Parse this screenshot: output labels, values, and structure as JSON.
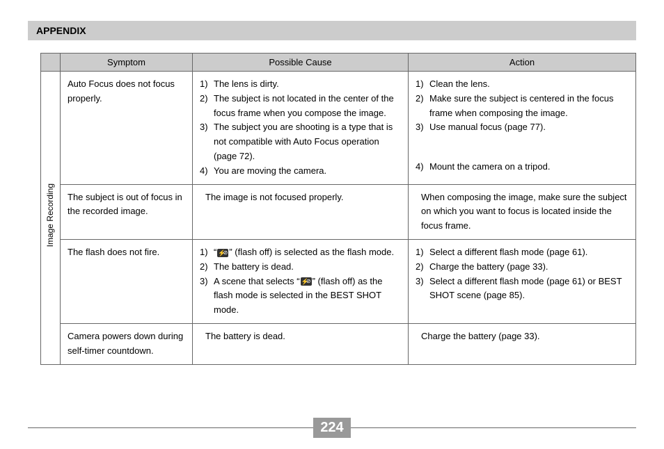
{
  "header": {
    "title": "APPENDIX"
  },
  "table": {
    "columns": [
      "Symptom",
      "Possible Cause",
      "Action"
    ],
    "category_label": "Image Recording",
    "rows": [
      {
        "symptom": "Auto Focus does not focus properly.",
        "causes": [
          "The lens is dirty.",
          "The subject is not located in the center of the focus frame when you compose the image.",
          "The subject you are shooting is a type that is not compatible with Auto Focus operation (page 72).",
          "You are moving the camera."
        ],
        "actions": [
          "Clean the lens.",
          "Make sure the subject is centered in the focus frame when composing the image.",
          "Use manual focus (page 77).",
          "Mount the camera on a tripod."
        ],
        "action_gap_before": 4
      },
      {
        "symptom": "The subject is out of focus in the recorded image.",
        "cause_plain": "The image is not focused properly.",
        "action_plain": "When composing the image, make sure the subject on which you want to focus is located inside the focus frame."
      },
      {
        "symptom": "The flash does not fire.",
        "causes_html": [
          {
            "pre": "“",
            "icon": true,
            "post": "” (flash off) is selected as the flash mode."
          },
          {
            "text": "The battery is dead."
          },
          {
            "pre": "A scene that selects “",
            "icon": true,
            "post": "” (flash off) as the flash mode is selected in the BEST SHOT mode."
          }
        ],
        "actions": [
          "Select a different flash mode (page 61).",
          "Charge the battery (page 33).",
          "Select a different flash mode (page 61) or BEST SHOT scene (page 85)."
        ]
      },
      {
        "symptom": "Camera powers down during self-timer countdown.",
        "cause_plain": "The battery is dead.",
        "action_plain": "Charge the battery (page 33)."
      }
    ]
  },
  "page_number": "224"
}
